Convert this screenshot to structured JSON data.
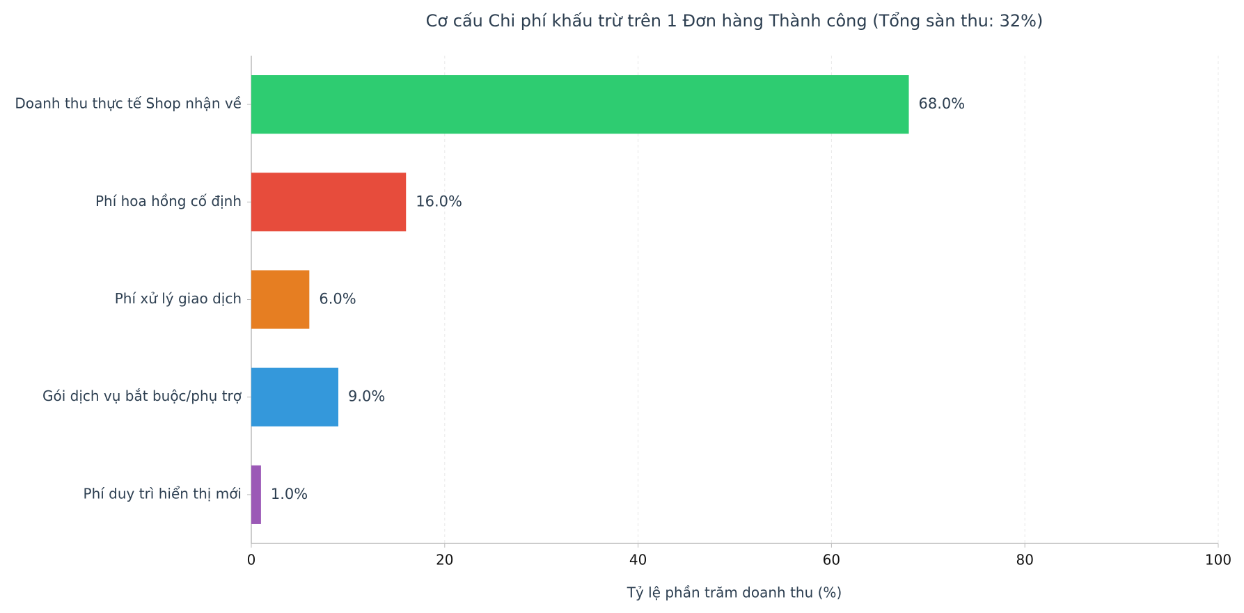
{
  "chart_data": {
    "type": "barh",
    "title": "Cơ cấu Chi phí khấu trừ trên 1 Đơn hàng Thành công (Tổng sàn thu: 32%)",
    "x_label": "Tỷ lệ phần trăm doanh thu (%)",
    "categories": [
      "Doanh thu thực tế Shop nhận về",
      "Phí hoa hồng cố định",
      "Phí xử lý giao dịch",
      "Gói dịch vụ bắt buộc/phụ trợ",
      "Phí duy trì hiển thị mới"
    ],
    "values": [
      68.0,
      16.0,
      6.0,
      9.0,
      1.0
    ],
    "value_labels": [
      "68.0%",
      "16.0%",
      "6.0%",
      "9.0%",
      "1.0%"
    ],
    "colors": [
      "#2ecc71",
      "#e74c3c",
      "#e67e22",
      "#3498db",
      "#9b59b6"
    ],
    "xlim": [
      0,
      100
    ],
    "xticks": [
      0,
      20,
      40,
      60,
      80,
      100
    ],
    "grid": true
  }
}
